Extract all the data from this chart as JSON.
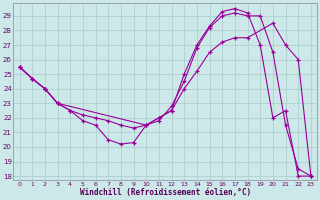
{
  "bg_color": "#cce8e8",
  "grid_color": "#aacccc",
  "line_color": "#990099",
  "xlim_min": -0.5,
  "xlim_max": 23.5,
  "ylim_min": 17.7,
  "ylim_max": 29.9,
  "xlabel": "Windchill (Refroidissement éolien,°C)",
  "xticks": [
    0,
    1,
    2,
    3,
    4,
    5,
    6,
    7,
    8,
    9,
    10,
    11,
    12,
    13,
    14,
    15,
    16,
    17,
    18,
    19,
    20,
    21,
    22,
    23
  ],
  "yticks": [
    18,
    19,
    20,
    21,
    22,
    23,
    24,
    25,
    26,
    27,
    28,
    29
  ],
  "series1_x": [
    0,
    1,
    2,
    3,
    4,
    5,
    6,
    7,
    8,
    9,
    10,
    11,
    12,
    13,
    14,
    15,
    16,
    17,
    18,
    19,
    20,
    21,
    22,
    23
  ],
  "series1_y": [
    25.5,
    24.7,
    24.0,
    23.0,
    22.5,
    22.2,
    22.0,
    21.8,
    21.5,
    21.3,
    21.5,
    22.0,
    22.5,
    25.0,
    27.0,
    28.3,
    29.3,
    29.5,
    29.2,
    27.0,
    22.0,
    22.5,
    18.0,
    18.0
  ],
  "series2_x": [
    0,
    1,
    2,
    3,
    4,
    5,
    6,
    7,
    8,
    9,
    10,
    11,
    12,
    13,
    14,
    15,
    16,
    17,
    18,
    20,
    21,
    22,
    23
  ],
  "series2_y": [
    25.5,
    24.7,
    24.0,
    23.0,
    22.5,
    21.8,
    21.5,
    20.5,
    20.2,
    20.3,
    21.5,
    22.0,
    22.5,
    24.0,
    25.2,
    26.5,
    27.2,
    27.5,
    27.5,
    28.5,
    27.0,
    26.0,
    18.0
  ],
  "series3_x": [
    0,
    1,
    2,
    3,
    10,
    11,
    12,
    13,
    14,
    15,
    16,
    17,
    18,
    19,
    20,
    21,
    22,
    23
  ],
  "series3_y": [
    25.5,
    24.7,
    24.0,
    23.0,
    21.5,
    21.8,
    22.8,
    24.5,
    26.8,
    28.2,
    29.0,
    29.2,
    29.0,
    29.0,
    26.5,
    21.5,
    18.5,
    18.0
  ]
}
